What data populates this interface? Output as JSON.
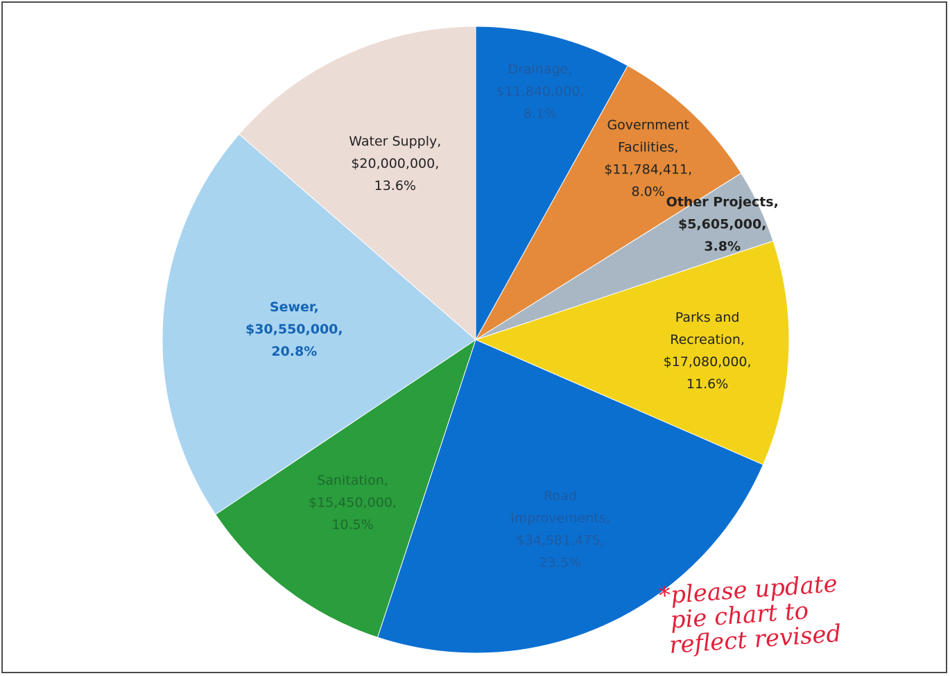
{
  "chart_data": {
    "type": "pie",
    "slices": [
      {
        "label": "Drainage",
        "amount": "$11,840,000",
        "percent": "8.1%",
        "value": 11840000,
        "color": "#0b6fd0",
        "text_color": "#1e5aa0"
      },
      {
        "label": "Government Facilities",
        "amount": "$11,784,411",
        "percent": "8.0%",
        "value": 11784411,
        "color": "#e48a3a",
        "text_color": "#222222"
      },
      {
        "label": "Other Projects",
        "amount": "$5,605,000",
        "percent": "3.8%",
        "value": 5605000,
        "color": "#a8b7c3",
        "text_color": "#222222"
      },
      {
        "label": "Parks and Recreation",
        "amount": "$17,080,000",
        "percent": "11.6%",
        "value": 17080000,
        "color": "#f2d31a",
        "text_color": "#222222"
      },
      {
        "label": "Road Improvements",
        "amount": "$34,581,475",
        "percent": "23.5%",
        "value": 34581475,
        "color": "#0b6fd0",
        "text_color": "#1e5aa0"
      },
      {
        "label": "Sanitation",
        "amount": "$15,450,000",
        "percent": "10.5%",
        "value": 15450000,
        "color": "#2a9d3c",
        "text_color": "#1e6a2e"
      },
      {
        "label": "Sewer",
        "amount": "$30,550,000",
        "percent": "20.8%",
        "value": 30550000,
        "color": "#a9d4f0",
        "text_color": "#1464b4"
      },
      {
        "label": "Water Supply",
        "amount": "$20,000,000",
        "percent": "13.6%",
        "value": 20000000,
        "color": "#ecdcd6",
        "text_color": "#222222"
      }
    ],
    "title": "",
    "legend": "none"
  },
  "annotation": {
    "lines": [
      "*please update",
      "pie chart to",
      "reflect revised"
    ],
    "color": "#e0213a"
  }
}
